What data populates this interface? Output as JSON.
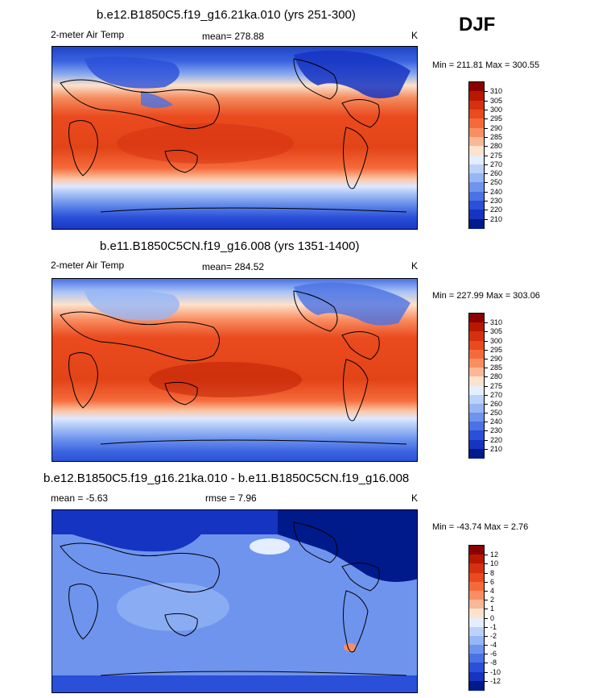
{
  "season": "DJF",
  "panels": [
    {
      "title": "b.e12.B1850C5.f19_g16.21ka.010 (yrs 251-300)",
      "left_text": "2-meter Air Temp",
      "center_text": "mean= 278.88",
      "units": "K",
      "minmax": "Min = 211.81 Max = 300.55",
      "colorbar": {
        "labels": [
          "310",
          "305",
          "300",
          "295",
          "290",
          "285",
          "280",
          "275",
          "270",
          "260",
          "250",
          "240",
          "230",
          "220",
          "210"
        ],
        "colors": [
          "#8a0000",
          "#b81800",
          "#d63010",
          "#ea4a1e",
          "#f56a3a",
          "#f98e62",
          "#fcb896",
          "#fde2cc",
          "#e4eeff",
          "#bcd2fa",
          "#96b6f5",
          "#6f94ee",
          "#4a72e4",
          "#2a4fd8",
          "#1634c2",
          "#001a8c"
        ]
      }
    },
    {
      "title": "b.e11.B1850C5CN.f19_g16.008 (yrs 1351-1400)",
      "left_text": "2-meter Air Temp",
      "center_text": "mean= 284.52",
      "units": "K",
      "minmax": "Min = 227.99 Max = 303.06",
      "colorbar": {
        "labels": [
          "310",
          "305",
          "300",
          "295",
          "290",
          "285",
          "280",
          "275",
          "270",
          "260",
          "250",
          "240",
          "230",
          "220",
          "210"
        ],
        "colors": [
          "#8a0000",
          "#b81800",
          "#d63010",
          "#ea4a1e",
          "#f56a3a",
          "#f98e62",
          "#fcb896",
          "#fde2cc",
          "#e4eeff",
          "#bcd2fa",
          "#96b6f5",
          "#6f94ee",
          "#4a72e4",
          "#2a4fd8",
          "#1634c2",
          "#001a8c"
        ]
      }
    },
    {
      "title": "b.e12.B1850C5.f19_g16.21ka.010 - b.e11.B1850C5CN.f19_g16.008",
      "left_text": "mean =  -5.63",
      "center_text": "rmse =   7.96",
      "units": "K",
      "minmax": "Min = -43.74 Max =   2.76",
      "colorbar": {
        "labels": [
          "12",
          "10",
          "8",
          "6",
          "4",
          "2",
          "1",
          "0",
          "-1",
          "-2",
          "-4",
          "-6",
          "-8",
          "-10",
          "-12"
        ],
        "colors": [
          "#8a0000",
          "#b81800",
          "#d63010",
          "#ea4a1e",
          "#f56a3a",
          "#f98e62",
          "#fcb896",
          "#fde2cc",
          "#e4eeff",
          "#bcd2fa",
          "#96b6f5",
          "#6f94ee",
          "#4a72e4",
          "#2a4fd8",
          "#1634c2",
          "#001a8c"
        ]
      }
    }
  ]
}
